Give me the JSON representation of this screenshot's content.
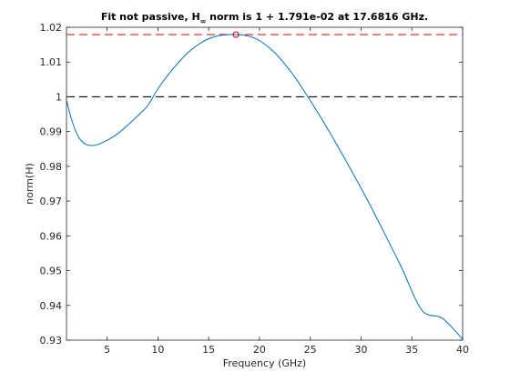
{
  "chart_data": {
    "type": "line",
    "title": "Fit not passive, H∞ norm is 1 + 1.791e-02 at 17.6816 GHz.",
    "title_parts": {
      "pre": "Fit not passive, H",
      "sub": "∞",
      "post": " norm is 1 + 1.791e-02 at 17.6816 GHz."
    },
    "xlabel": "Frequency (GHz)",
    "ylabel": "norm(H)",
    "xlim": [
      1,
      40
    ],
    "ylim": [
      0.93,
      1.02
    ],
    "xticks": [
      5,
      10,
      15,
      20,
      25,
      30,
      35,
      40
    ],
    "yticks": [
      0.93,
      0.94,
      0.95,
      0.96,
      0.97,
      0.98,
      0.99,
      1,
      1.01,
      1.02
    ],
    "ytick_labels": [
      "0.93",
      "0.94",
      "0.95",
      "0.96",
      "0.97",
      "0.98",
      "0.99",
      "1",
      "1.01",
      "1.02"
    ],
    "grid": false,
    "series": [
      {
        "color": "#0072BD",
        "x": [
          1.0,
          1.5,
          2.0,
          2.5,
          3.0,
          3.5,
          4.0,
          5.0,
          6.0,
          7.0,
          8.0,
          9.0,
          10.0,
          11.0,
          12.0,
          13.0,
          14.0,
          15.0,
          16.0,
          17.0,
          17.68,
          18.5,
          19.5,
          20.5,
          21.5,
          22.5,
          23.5,
          24.5,
          25.5,
          26.5,
          27.5,
          28.5,
          29.5,
          30.5,
          32.0,
          34.0,
          36.0,
          38.0,
          40.0
        ],
        "y": [
          0.999,
          0.9935,
          0.9895,
          0.9872,
          0.9862,
          0.986,
          0.9862,
          0.9875,
          0.9893,
          0.9918,
          0.9945,
          0.9975,
          1.0023,
          1.0063,
          1.0098,
          1.0128,
          1.0151,
          1.0167,
          1.0176,
          1.0179,
          1.01791,
          1.0177,
          1.0169,
          1.0152,
          1.0127,
          1.0094,
          1.0056,
          1.0012,
          0.9966,
          0.9918,
          0.9868,
          0.9817,
          0.9764,
          0.971,
          0.9625,
          0.9508,
          0.9386,
          0.9363,
          0.9303
        ]
      }
    ],
    "reference_lines": [
      {
        "y": 1.0,
        "color": "#000000",
        "style": "dashed"
      },
      {
        "y": 1.01791,
        "color": "#D40000",
        "style": "dashed"
      }
    ],
    "marker": {
      "x": 17.6816,
      "y": 1.01791,
      "color": "#D40000",
      "shape": "circle"
    }
  }
}
